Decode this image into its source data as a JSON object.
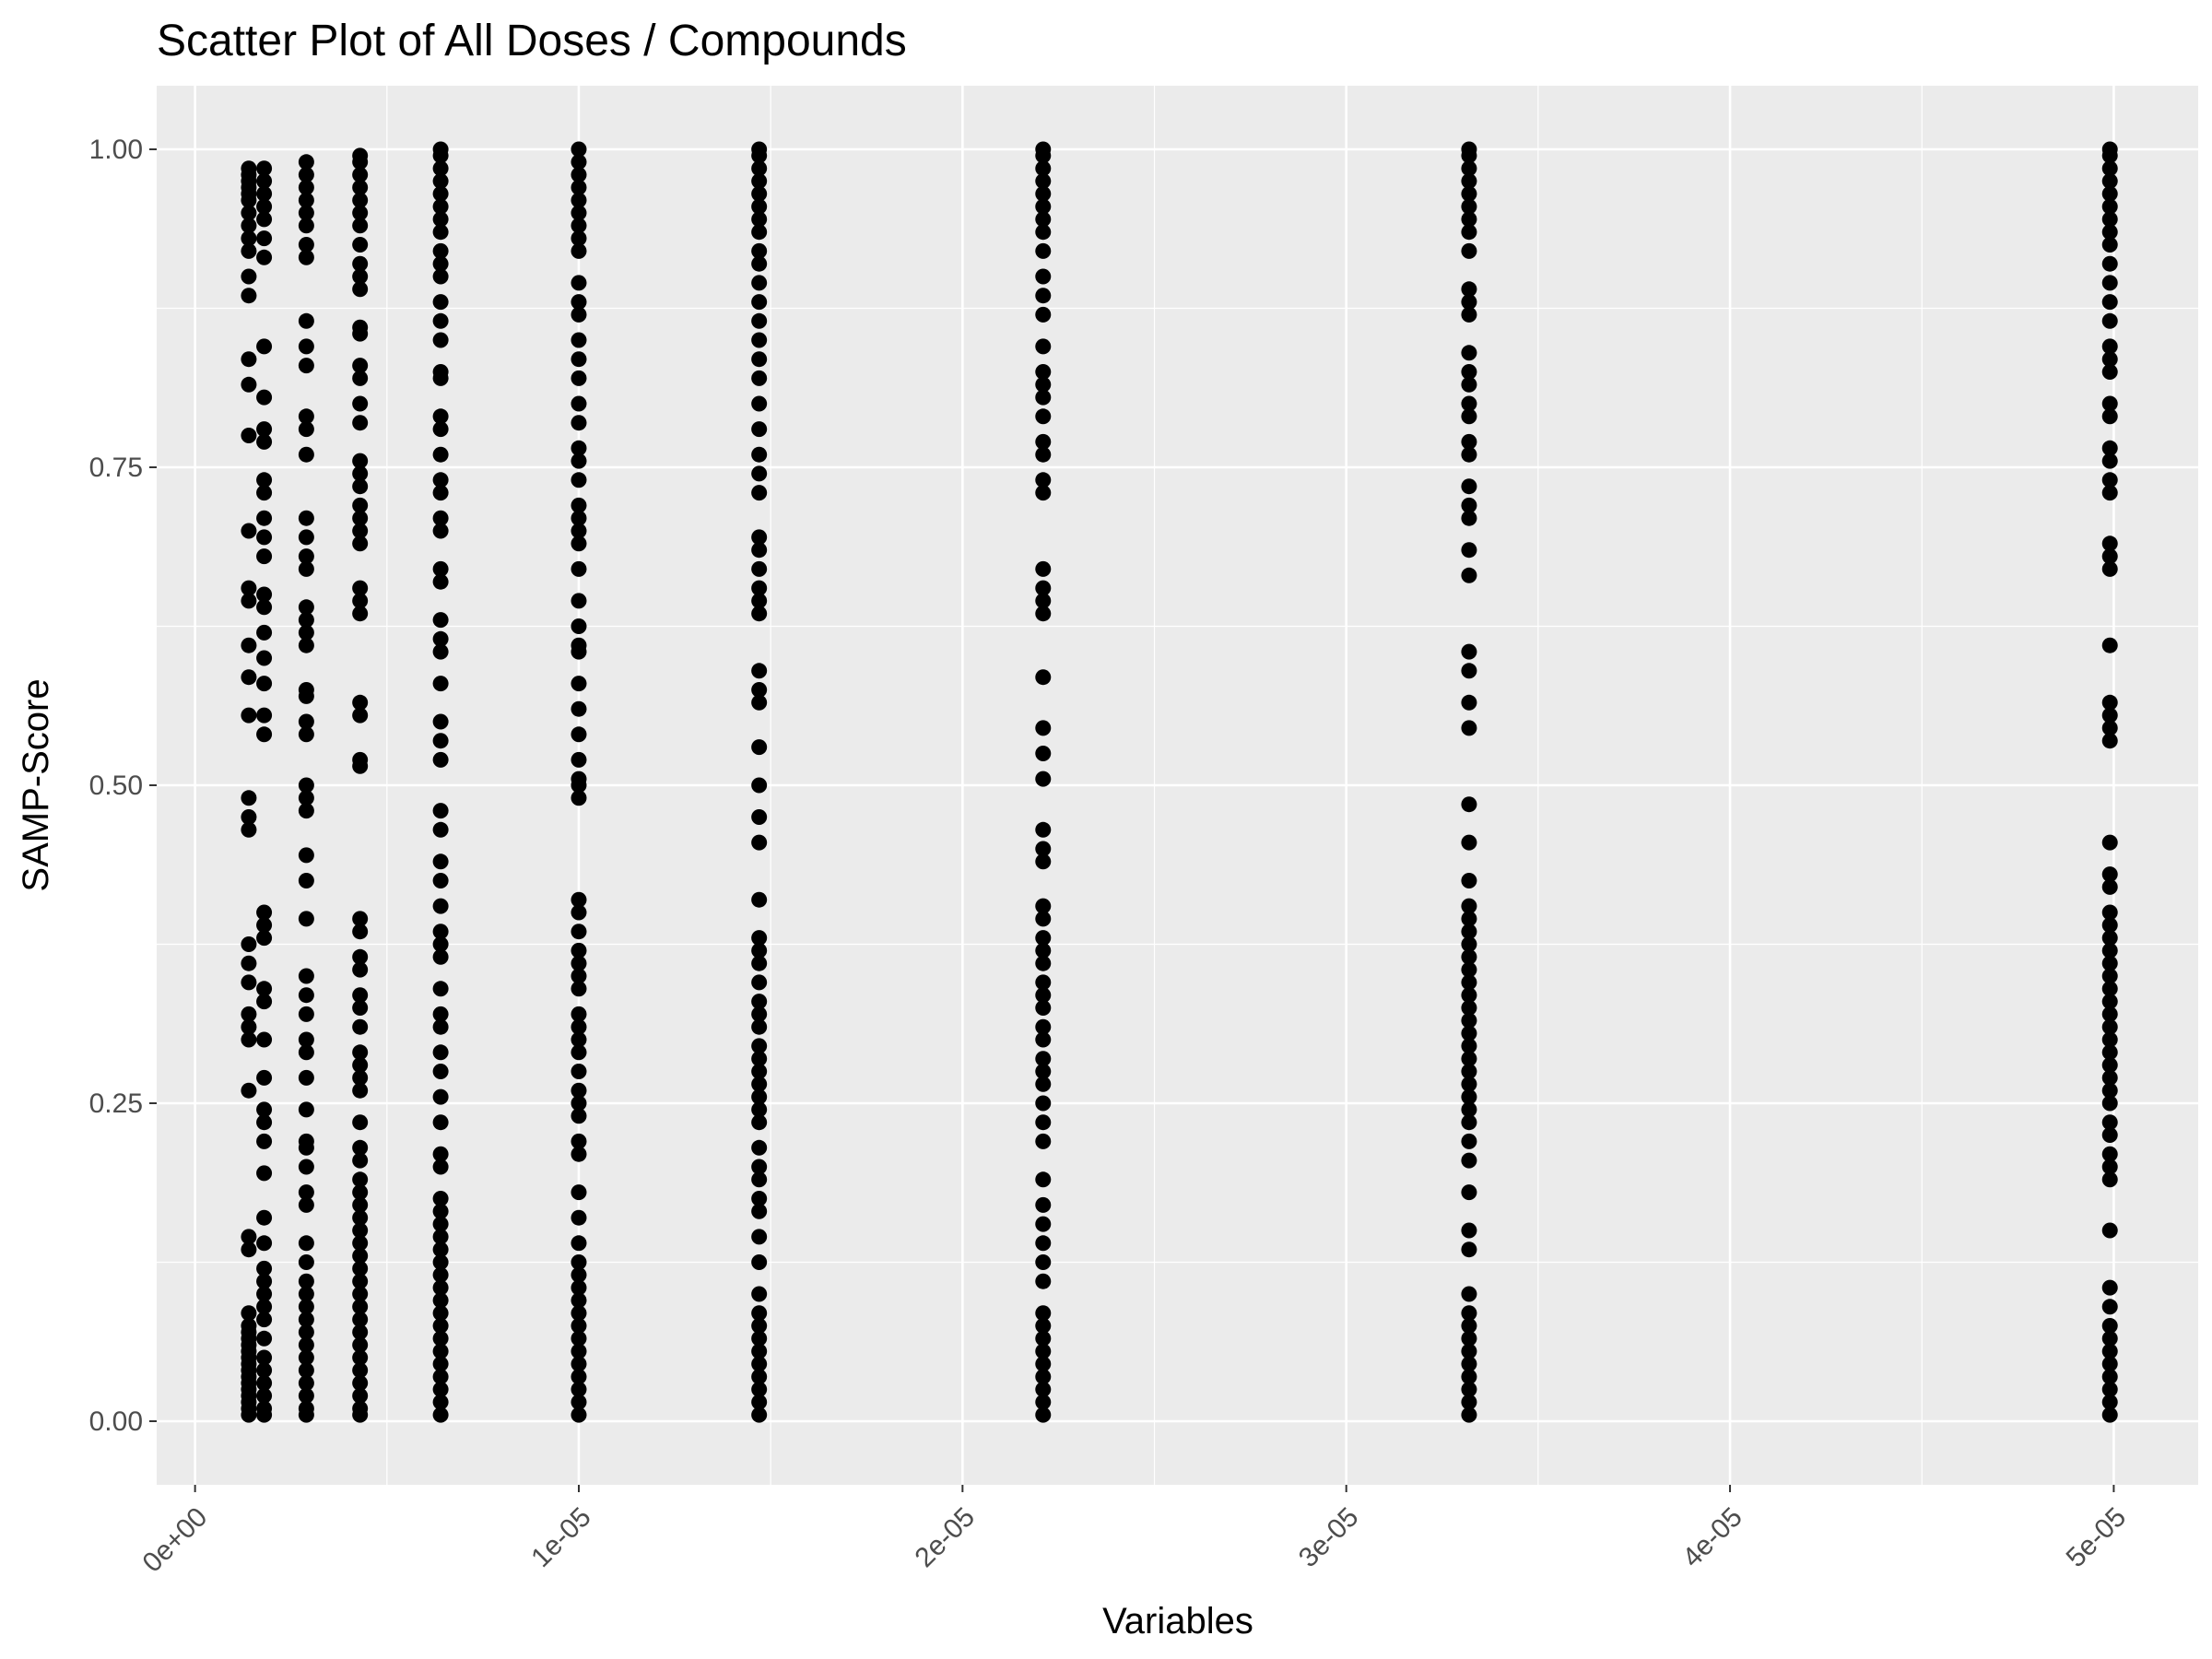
{
  "chart_data": {
    "type": "scatter",
    "title": "Scatter Plot of All Doses / Compounds",
    "xlabel": "Variables",
    "ylabel": "SAMP-Score",
    "xlim": [
      -1e-06,
      5.22e-05
    ],
    "ylim": [
      -0.05,
      1.05
    ],
    "x_ticks": [
      0,
      1e-05,
      2e-05,
      3e-05,
      4e-05,
      5e-05
    ],
    "x_tick_labels": [
      "0e+00",
      "1e-05",
      "2e-05",
      "3e-05",
      "4e-05",
      "5e-05"
    ],
    "y_ticks": [
      0,
      0.25,
      0.5,
      0.75,
      1.0
    ],
    "y_tick_labels": [
      "0.00",
      "0.25",
      "0.50",
      "0.75",
      "1.00"
    ],
    "grid": true,
    "legend": "none",
    "colors": {
      "panel": "#ebebeb",
      "grid": "#ffffff",
      "point": "#000000"
    },
    "dose_levels": [
      1.4e-06,
      1.8e-06,
      2.9e-06,
      4.3e-06,
      6.4e-06,
      1e-05,
      1.47e-05,
      2.21e-05,
      3.32e-05,
      4.99e-05
    ],
    "series": [
      {
        "x": 1.4e-06,
        "y": [
          0.005,
          0.01,
          0.015,
          0.02,
          0.025,
          0.03,
          0.035,
          0.04,
          0.045,
          0.05,
          0.055,
          0.06,
          0.065,
          0.07,
          0.075,
          0.085,
          0.135,
          0.145,
          0.26,
          0.3,
          0.31,
          0.32,
          0.345,
          0.36,
          0.375,
          0.465,
          0.475,
          0.49,
          0.555,
          0.585,
          0.61,
          0.645,
          0.655,
          0.7,
          0.775,
          0.815,
          0.835,
          0.885,
          0.9,
          0.92,
          0.93,
          0.94,
          0.95,
          0.96,
          0.965,
          0.97,
          0.975,
          0.98,
          0.985
        ]
      },
      {
        "x": 1.8e-06,
        "y": [
          0.005,
          0.01,
          0.02,
          0.03,
          0.04,
          0.05,
          0.065,
          0.08,
          0.09,
          0.1,
          0.11,
          0.12,
          0.14,
          0.16,
          0.195,
          0.22,
          0.235,
          0.245,
          0.27,
          0.3,
          0.33,
          0.34,
          0.38,
          0.39,
          0.4,
          0.54,
          0.555,
          0.58,
          0.6,
          0.62,
          0.64,
          0.65,
          0.68,
          0.695,
          0.71,
          0.73,
          0.74,
          0.77,
          0.78,
          0.805,
          0.845,
          0.915,
          0.93,
          0.945,
          0.955,
          0.965,
          0.975,
          0.985
        ]
      },
      {
        "x": 2.9e-06,
        "y": [
          0.005,
          0.01,
          0.02,
          0.03,
          0.04,
          0.05,
          0.06,
          0.07,
          0.08,
          0.09,
          0.1,
          0.11,
          0.125,
          0.14,
          0.17,
          0.18,
          0.2,
          0.215,
          0.22,
          0.245,
          0.27,
          0.29,
          0.3,
          0.32,
          0.335,
          0.35,
          0.395,
          0.425,
          0.445,
          0.48,
          0.49,
          0.5,
          0.54,
          0.55,
          0.57,
          0.575,
          0.61,
          0.62,
          0.63,
          0.64,
          0.67,
          0.68,
          0.695,
          0.71,
          0.76,
          0.78,
          0.79,
          0.83,
          0.845,
          0.865,
          0.915,
          0.925,
          0.94,
          0.95,
          0.96,
          0.97,
          0.98,
          0.99
        ]
      },
      {
        "x": 4.3e-06,
        "y": [
          0.005,
          0.01,
          0.02,
          0.03,
          0.04,
          0.05,
          0.06,
          0.07,
          0.08,
          0.09,
          0.1,
          0.11,
          0.12,
          0.13,
          0.14,
          0.15,
          0.16,
          0.17,
          0.18,
          0.19,
          0.205,
          0.215,
          0.235,
          0.26,
          0.27,
          0.28,
          0.29,
          0.31,
          0.325,
          0.335,
          0.355,
          0.365,
          0.385,
          0.395,
          0.515,
          0.52,
          0.555,
          0.565,
          0.635,
          0.645,
          0.655,
          0.69,
          0.7,
          0.71,
          0.72,
          0.735,
          0.745,
          0.755,
          0.785,
          0.8,
          0.82,
          0.83,
          0.855,
          0.86,
          0.89,
          0.9,
          0.91,
          0.925,
          0.94,
          0.95,
          0.96,
          0.97,
          0.98,
          0.99,
          0.995
        ]
      },
      {
        "x": 6.4e-06,
        "y": [
          0.005,
          0.015,
          0.025,
          0.035,
          0.045,
          0.055,
          0.065,
          0.075,
          0.085,
          0.095,
          0.105,
          0.115,
          0.125,
          0.135,
          0.145,
          0.155,
          0.165,
          0.175,
          0.2,
          0.21,
          0.235,
          0.255,
          0.275,
          0.29,
          0.31,
          0.32,
          0.34,
          0.365,
          0.375,
          0.385,
          0.405,
          0.425,
          0.44,
          0.465,
          0.48,
          0.52,
          0.535,
          0.55,
          0.58,
          0.605,
          0.615,
          0.63,
          0.66,
          0.67,
          0.7,
          0.71,
          0.73,
          0.74,
          0.76,
          0.78,
          0.79,
          0.82,
          0.825,
          0.85,
          0.865,
          0.88,
          0.9,
          0.91,
          0.92,
          0.935,
          0.945,
          0.955,
          0.965,
          0.975,
          0.985,
          0.995,
          1.0
        ]
      },
      {
        "x": 1e-05,
        "y": [
          0.005,
          0.015,
          0.025,
          0.035,
          0.045,
          0.055,
          0.065,
          0.075,
          0.085,
          0.095,
          0.105,
          0.115,
          0.125,
          0.14,
          0.16,
          0.18,
          0.21,
          0.22,
          0.24,
          0.25,
          0.26,
          0.275,
          0.29,
          0.3,
          0.31,
          0.32,
          0.34,
          0.35,
          0.36,
          0.37,
          0.385,
          0.4,
          0.41,
          0.49,
          0.5,
          0.505,
          0.52,
          0.54,
          0.56,
          0.58,
          0.605,
          0.61,
          0.625,
          0.645,
          0.67,
          0.69,
          0.7,
          0.71,
          0.72,
          0.74,
          0.755,
          0.765,
          0.785,
          0.8,
          0.82,
          0.835,
          0.85,
          0.87,
          0.88,
          0.895,
          0.92,
          0.93,
          0.94,
          0.95,
          0.96,
          0.97,
          0.98,
          0.99,
          1.0
        ]
      },
      {
        "x": 1.47e-05,
        "y": [
          0.005,
          0.015,
          0.025,
          0.035,
          0.045,
          0.055,
          0.065,
          0.075,
          0.085,
          0.1,
          0.125,
          0.145,
          0.165,
          0.175,
          0.19,
          0.2,
          0.215,
          0.235,
          0.245,
          0.255,
          0.265,
          0.275,
          0.285,
          0.295,
          0.31,
          0.32,
          0.33,
          0.345,
          0.36,
          0.37,
          0.38,
          0.41,
          0.455,
          0.475,
          0.5,
          0.53,
          0.565,
          0.575,
          0.59,
          0.635,
          0.645,
          0.655,
          0.67,
          0.685,
          0.695,
          0.73,
          0.745,
          0.76,
          0.78,
          0.8,
          0.82,
          0.835,
          0.85,
          0.865,
          0.88,
          0.895,
          0.91,
          0.92,
          0.935,
          0.945,
          0.955,
          0.965,
          0.975,
          0.985,
          0.995,
          1.0
        ]
      },
      {
        "x": 2.21e-05,
        "y": [
          0.005,
          0.015,
          0.025,
          0.035,
          0.045,
          0.055,
          0.065,
          0.075,
          0.085,
          0.11,
          0.125,
          0.14,
          0.155,
          0.17,
          0.19,
          0.22,
          0.235,
          0.25,
          0.265,
          0.275,
          0.285,
          0.3,
          0.31,
          0.325,
          0.335,
          0.345,
          0.36,
          0.37,
          0.38,
          0.395,
          0.405,
          0.44,
          0.45,
          0.465,
          0.505,
          0.525,
          0.545,
          0.585,
          0.635,
          0.645,
          0.655,
          0.67,
          0.73,
          0.74,
          0.76,
          0.77,
          0.79,
          0.805,
          0.815,
          0.825,
          0.845,
          0.87,
          0.885,
          0.9,
          0.92,
          0.935,
          0.945,
          0.955,
          0.965,
          0.975,
          0.985,
          0.995,
          1.0
        ]
      },
      {
        "x": 3.32e-05,
        "y": [
          0.005,
          0.015,
          0.025,
          0.035,
          0.045,
          0.055,
          0.065,
          0.075,
          0.085,
          0.1,
          0.135,
          0.15,
          0.18,
          0.205,
          0.22,
          0.235,
          0.245,
          0.255,
          0.265,
          0.275,
          0.285,
          0.295,
          0.305,
          0.315,
          0.325,
          0.335,
          0.345,
          0.355,
          0.365,
          0.375,
          0.385,
          0.395,
          0.405,
          0.425,
          0.455,
          0.485,
          0.545,
          0.565,
          0.59,
          0.605,
          0.665,
          0.685,
          0.71,
          0.72,
          0.735,
          0.76,
          0.77,
          0.79,
          0.8,
          0.815,
          0.825,
          0.84,
          0.87,
          0.88,
          0.89,
          0.92,
          0.935,
          0.945,
          0.955,
          0.965,
          0.975,
          0.985,
          0.995,
          1.0
        ]
      },
      {
        "x": 4.99e-05,
        "y": [
          0.005,
          0.015,
          0.025,
          0.035,
          0.045,
          0.055,
          0.065,
          0.075,
          0.09,
          0.105,
          0.15,
          0.19,
          0.2,
          0.21,
          0.225,
          0.235,
          0.25,
          0.26,
          0.27,
          0.28,
          0.29,
          0.3,
          0.31,
          0.32,
          0.33,
          0.34,
          0.35,
          0.36,
          0.37,
          0.38,
          0.39,
          0.4,
          0.42,
          0.43,
          0.455,
          0.535,
          0.545,
          0.555,
          0.565,
          0.61,
          0.67,
          0.68,
          0.69,
          0.73,
          0.74,
          0.755,
          0.765,
          0.79,
          0.8,
          0.825,
          0.835,
          0.845,
          0.865,
          0.88,
          0.895,
          0.91,
          0.925,
          0.935,
          0.945,
          0.955,
          0.965,
          0.975,
          0.985,
          0.995,
          1.0
        ]
      }
    ]
  }
}
